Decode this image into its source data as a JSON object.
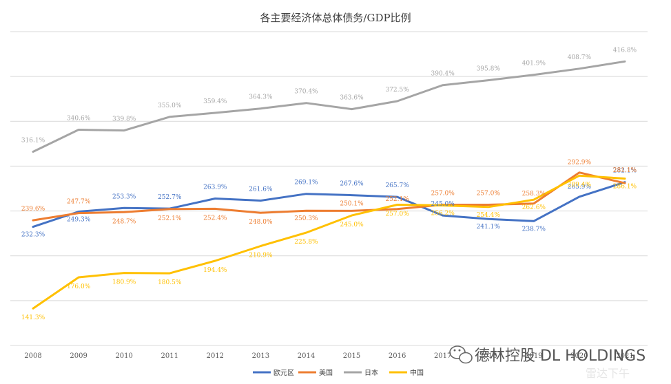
{
  "chart_data": {
    "type": "line",
    "title": "各主要经济体总体债务/GDP比例",
    "x": [
      "2008",
      "2009",
      "2010",
      "2011",
      "2012",
      "2013",
      "2014",
      "2015",
      "2016",
      "2017",
      "2018",
      "2019",
      "2020",
      "2021"
    ],
    "ylim": [
      100,
      450
    ],
    "grid": true,
    "legend_position": "bottom",
    "series": [
      {
        "name": "欧元区",
        "color": "#4472C4",
        "values": [
          232.3,
          249.3,
          253.3,
          252.7,
          263.9,
          261.6,
          269.1,
          267.6,
          265.7,
          245.0,
          241.1,
          238.7,
          265.9,
          282.1
        ],
        "labels": [
          "232.3%",
          "249.3%",
          "253.3%",
          "252.7%",
          "263.9%",
          "261.6%",
          "269.1%",
          "267.6%",
          "265.7%",
          "245.0%",
          "241.1%",
          "238.7%",
          "265.9%",
          "282.1%"
        ]
      },
      {
        "name": "美国",
        "color": "#ED7D31",
        "values": [
          239.6,
          247.7,
          248.7,
          252.1,
          252.4,
          248.0,
          250.3,
          250.1,
          252.1,
          257.0,
          257.0,
          258.3,
          292.9,
          281.1
        ],
        "labels": [
          "239.6%",
          "247.7%",
          "248.7%",
          "252.1%",
          "252.4%",
          "248.0%",
          "250.3%",
          "250.1%",
          "252.1%",
          "257.0%",
          "257.0%",
          "258.3%",
          "292.9%",
          "281.1%"
        ]
      },
      {
        "name": "日本",
        "color": "#A5A5A5",
        "values": [
          316.1,
          340.6,
          339.8,
          355.0,
          359.4,
          364.3,
          370.4,
          363.6,
          372.5,
          390.4,
          395.8,
          401.9,
          408.7,
          416.8
        ],
        "labels": [
          "316.1%",
          "340.6%",
          "339.8%",
          "355.0%",
          "359.4%",
          "364.3%",
          "370.4%",
          "363.6%",
          "372.5%",
          "390.4%",
          "395.8%",
          "401.9%",
          "408.7%",
          "416.8%"
        ]
      },
      {
        "name": "中国",
        "color": "#FFC000",
        "values": [
          141.3,
          176.0,
          180.9,
          180.5,
          194.4,
          210.9,
          225.8,
          245.0,
          257.0,
          256.2,
          254.4,
          262.6,
          289.4,
          286.1
        ],
        "labels": [
          "141.3%",
          "176.0%",
          "180.9%",
          "180.5%",
          "194.4%",
          "210.9%",
          "225.8%",
          "245.0%",
          "257.0%",
          "256.2%",
          "254.4%",
          "262.6%",
          "289.4%",
          "286.1%"
        ]
      }
    ]
  },
  "watermark": {
    "text": "德林控股 DL HOLDINGS",
    "sub": "雷达下午"
  }
}
